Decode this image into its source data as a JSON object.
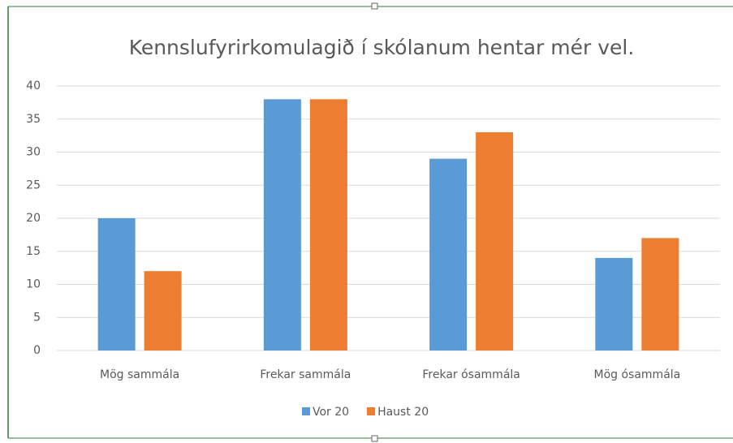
{
  "chart_data": {
    "type": "bar",
    "title": "Kennslufyrirkomulagið í skólanum hentar mér vel.",
    "categories": [
      "Mög sammála",
      "Frekar sammála",
      "Frekar ósammála",
      "Mög ósammála"
    ],
    "series": [
      {
        "name": "Vor 20",
        "color": "#5b9bd5",
        "values": [
          20,
          38,
          29,
          14
        ]
      },
      {
        "name": "Haust 20",
        "color": "#ed7d31",
        "values": [
          12,
          38,
          33,
          17
        ]
      }
    ],
    "ylim": [
      0,
      40
    ],
    "yticks": [
      0,
      5,
      10,
      15,
      20,
      25,
      30,
      35,
      40
    ],
    "grid": true,
    "legend": "bottom"
  }
}
